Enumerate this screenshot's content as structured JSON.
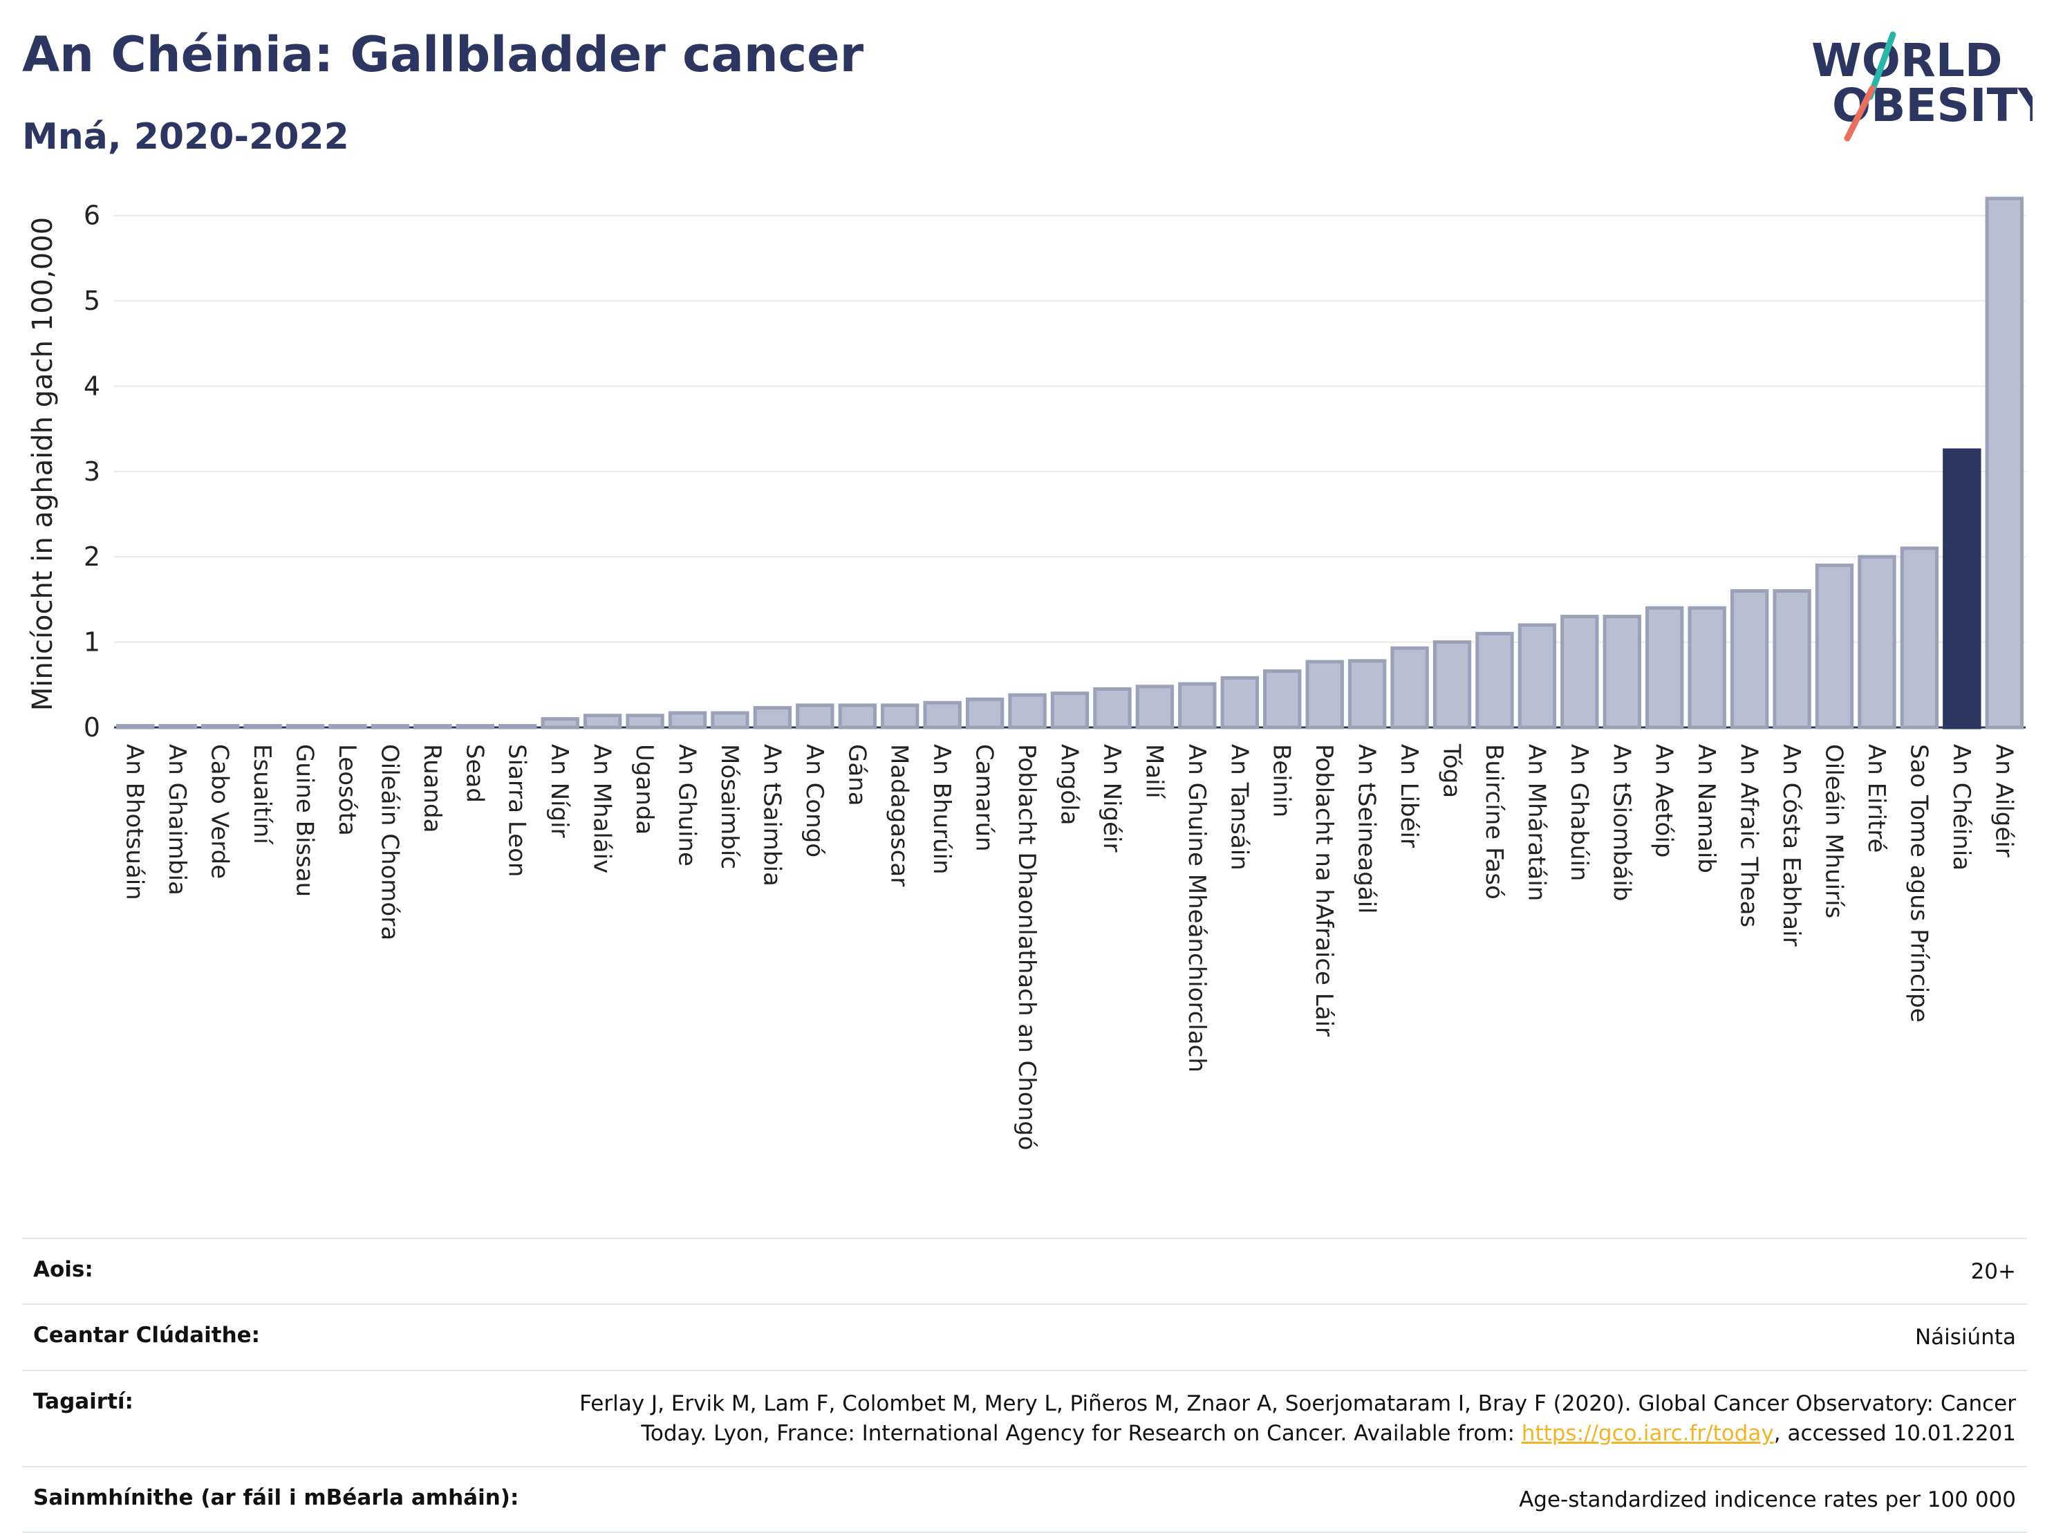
{
  "header": {
    "title": "An Chéinia: Gallbladder cancer",
    "subtitle": "Mná, 2020-2022"
  },
  "logo": {
    "line1": "WORLD",
    "line2": "OBESITY"
  },
  "colors": {
    "bar": "#b9bfd0",
    "bar_stroke": "#9aa1b8",
    "highlight": "#2c3660",
    "title": "#2c3660",
    "link": "#f0b429"
  },
  "chart_data": {
    "type": "bar",
    "ylabel": "Minicíocht in aghaidh gach 100,000",
    "ylim": [
      0,
      6.5
    ],
    "yticks": [
      0,
      1,
      2,
      3,
      4,
      5,
      6
    ],
    "grid": true,
    "highlight": "An Chéinia",
    "categories": [
      "An Bhotsuáin",
      "An Ghaimbia",
      "Cabo Verde",
      "Esuaitíní",
      "Guine Bissau",
      "Leosóta",
      "Oileáin Chomóra",
      "Ruanda",
      "Sead",
      "Siarra Leon",
      "An Nígir",
      "An Mhaláiv",
      "Uganda",
      "An Ghuine",
      "Mósaimbíc",
      "An tSaimbia",
      "An Congó",
      "Gána",
      "Madagascar",
      "An Bhurúin",
      "Camarún",
      "Poblacht Dhaonlathach an Chongó",
      "Angóla",
      "An Nigéir",
      "Mailí",
      "An Ghuine Mheánchiorclach",
      "An Tansáin",
      "Beinin",
      "Poblacht na hAfraice Láir",
      "An tSeineagáil",
      "An Libéir",
      "Tóga",
      "Buircíne Fasó",
      "An Mháratáin",
      "An Ghabúin",
      "An tSiombáib",
      "An Aetóip",
      "An Namaib",
      "An Afraic Theas",
      "An Cósta Eabhair",
      "Oileáin Mhuirís",
      "An Eiritré",
      "Sao Tome agus Príncipe",
      "An Chéinia",
      "An Ailgéir"
    ],
    "values": [
      0.02,
      0.02,
      0.02,
      0.02,
      0.02,
      0.02,
      0.02,
      0.02,
      0.02,
      0.02,
      0.1,
      0.14,
      0.14,
      0.17,
      0.17,
      0.23,
      0.26,
      0.26,
      0.26,
      0.29,
      0.33,
      0.38,
      0.4,
      0.45,
      0.48,
      0.51,
      0.58,
      0.66,
      0.77,
      0.78,
      0.93,
      1.0,
      1.1,
      1.2,
      1.3,
      1.3,
      1.4,
      1.4,
      1.6,
      1.6,
      1.9,
      2.0,
      2.1,
      3.25,
      6.2
    ]
  },
  "meta": {
    "age_label": "Aois:",
    "age_value": "20+",
    "coverage_label": "Ceantar Clúdaithe:",
    "coverage_value": "Náisiúnta",
    "ref_label": "Tagairtí:",
    "ref_line1": "Ferlay J, Ervik M, Lam F, Colombet M, Mery L, Piñeros M, Znaor A, Soerjomataram I, Bray F (2020). Global Cancer Observatory: Cancer",
    "ref_line2_pre": "Today. Lyon, France: International Agency for Research on Cancer. Available from: ",
    "ref_link": "https://gco.iarc.fr/today",
    "ref_line2_post": ", accessed 10.01.2201",
    "def_label": "Sainmhínithe (ar fáil i mBéarla amháin):",
    "def_value": "Age-standardized indicence rates per 100 000"
  }
}
